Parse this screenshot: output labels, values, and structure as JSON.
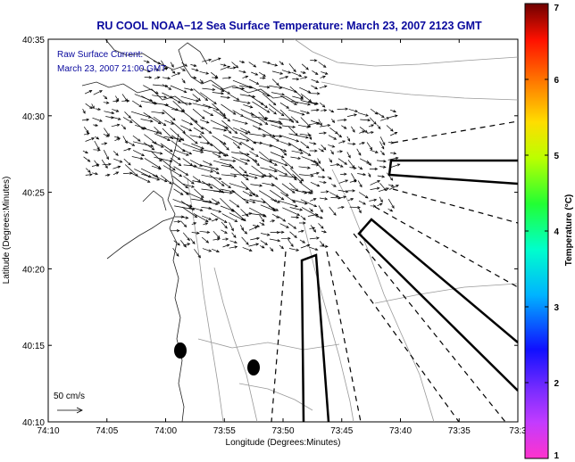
{
  "title": "RU COOL  NOAA−12  Sea Surface Temperature:  March 23, 2007 2123 GMT",
  "annotation": {
    "line1": "Raw Surface Current:",
    "line2": "March 23, 2007 21:00 GMT"
  },
  "scale": {
    "label": "50 cm/s"
  },
  "axes": {
    "xlabel": "Longitude (Degrees:Minutes)",
    "ylabel": "Latitude (Degrees:Minutes)",
    "x_ticks": [
      "74:10",
      "74:05",
      "74:00",
      "73:55",
      "73:50",
      "73:45",
      "73:40",
      "73:35",
      "73:3"
    ],
    "y_ticks": [
      "40:35",
      "40:30",
      "40:25",
      "40:20",
      "40:15",
      "40:10"
    ]
  },
  "colorbar": {
    "label": "Temperature (°C)",
    "ticks": [
      "7",
      "6",
      "5",
      "4",
      "3",
      "2",
      "1"
    ],
    "colors": [
      "#ff33cc",
      "#8a3cff",
      "#1010ff",
      "#00ccff",
      "#00ff66",
      "#aaff00",
      "#ffdd00",
      "#ff7700",
      "#ff1100",
      "#7a0000"
    ]
  }
}
